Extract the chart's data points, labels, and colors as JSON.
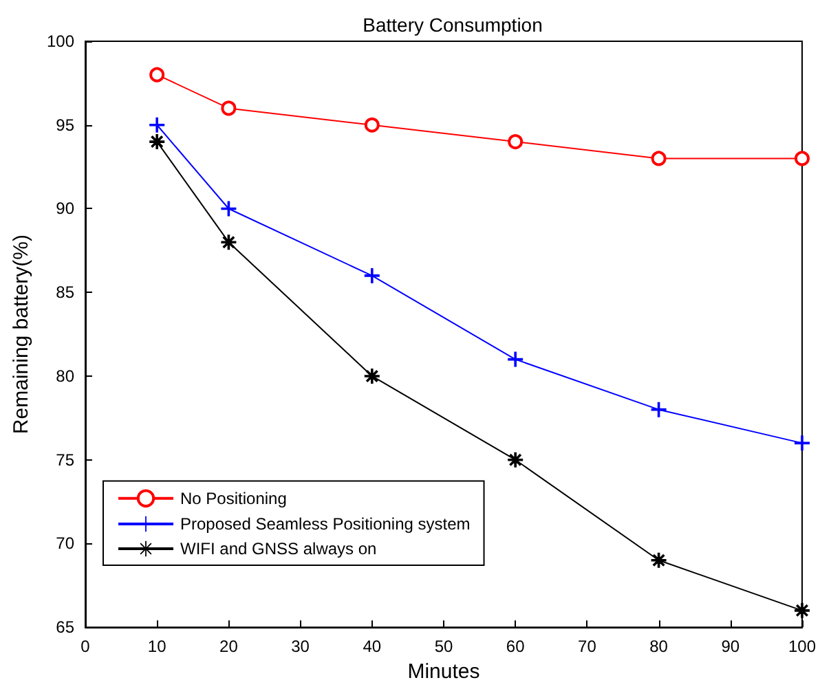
{
  "chart_data": {
    "type": "line",
    "title": "Battery Consumption",
    "xlabel": "Minutes",
    "ylabel": "Remaining battery(%)",
    "x": [
      10,
      20,
      40,
      60,
      80,
      100
    ],
    "series": [
      {
        "name": "No Positioning",
        "color": "#ff0000",
        "marker": "circle",
        "values": [
          98,
          96,
          95,
          94,
          93,
          93
        ]
      },
      {
        "name": "Proposed Seamless Positioning system",
        "color": "#0000ff",
        "marker": "cross",
        "values": [
          95,
          90,
          86,
          81,
          78,
          76
        ]
      },
      {
        "name": "WIFI and GNSS always on",
        "color": "#000000",
        "marker": "star",
        "values": [
          94,
          88,
          80,
          75,
          69,
          66
        ]
      }
    ],
    "xlim": [
      0,
      100
    ],
    "xticks": [
      0,
      10,
      20,
      30,
      40,
      50,
      60,
      70,
      80,
      90,
      100
    ],
    "ylim": [
      65,
      100
    ],
    "yticks": [
      65,
      70,
      75,
      80,
      85,
      90,
      95,
      100
    ],
    "grid": false,
    "legend": "bottom left",
    "line_style": "solid"
  }
}
